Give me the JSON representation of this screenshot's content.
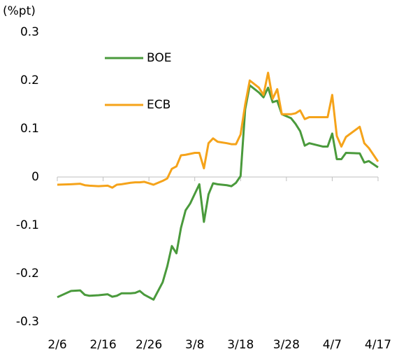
{
  "chart_data": {
    "type": "line",
    "ylabel": "(%pt)",
    "x": [
      0,
      3,
      5,
      6,
      7,
      9,
      11,
      12,
      13,
      14,
      16,
      17,
      18,
      19,
      20,
      21,
      23,
      24,
      25,
      26,
      27,
      28,
      29,
      30,
      31,
      32,
      33,
      34,
      35,
      37,
      38,
      39,
      40,
      41,
      42,
      44,
      45,
      46,
      47,
      48,
      49,
      51,
      52,
      53,
      54,
      55,
      58,
      59,
      60,
      61,
      62,
      63,
      66,
      67,
      68,
      70
    ],
    "series": [
      {
        "name": "BOE",
        "color": "#4a9a3c",
        "values": [
          -0.249,
          -0.236,
          -0.235,
          -0.244,
          -0.246,
          -0.245,
          -0.243,
          -0.248,
          -0.246,
          -0.241,
          -0.241,
          -0.24,
          -0.236,
          -0.244,
          -0.249,
          -0.254,
          -0.218,
          -0.185,
          -0.143,
          -0.158,
          -0.105,
          -0.069,
          -0.055,
          -0.035,
          -0.015,
          -0.093,
          -0.036,
          -0.013,
          -0.015,
          -0.017,
          -0.019,
          -0.012,
          0.002,
          0.14,
          0.19,
          0.175,
          0.165,
          0.185,
          0.155,
          0.158,
          0.13,
          0.122,
          0.11,
          0.095,
          0.065,
          0.07,
          0.063,
          0.063,
          0.09,
          0.037,
          0.037,
          0.05,
          0.049,
          0.03,
          0.033,
          0.02
        ]
      },
      {
        "name": "ECB",
        "color": "#f5a31a",
        "values": [
          -0.016,
          -0.015,
          -0.014,
          -0.017,
          -0.018,
          -0.019,
          -0.018,
          -0.022,
          -0.016,
          -0.015,
          -0.012,
          -0.011,
          -0.011,
          -0.01,
          -0.013,
          -0.016,
          -0.008,
          -0.003,
          0.017,
          0.022,
          0.045,
          0.046,
          0.048,
          0.05,
          0.05,
          0.018,
          0.07,
          0.08,
          0.073,
          0.07,
          0.068,
          0.068,
          0.088,
          0.15,
          0.2,
          0.185,
          0.17,
          0.216,
          0.162,
          0.182,
          0.13,
          0.13,
          0.132,
          0.138,
          0.12,
          0.124,
          0.124,
          0.124,
          0.17,
          0.085,
          0.063,
          0.083,
          0.104,
          0.07,
          0.06,
          0.032
        ]
      }
    ],
    "xlim": [
      0,
      70
    ],
    "xticks": [
      {
        "value": 0,
        "label": "2/6"
      },
      {
        "value": 10,
        "label": "2/16"
      },
      {
        "value": 20,
        "label": "2/26"
      },
      {
        "value": 30,
        "label": "3/8"
      },
      {
        "value": 40,
        "label": "3/18"
      },
      {
        "value": 50,
        "label": "3/28"
      },
      {
        "value": 60,
        "label": "4/7"
      },
      {
        "value": 70,
        "label": "4/17"
      }
    ],
    "ylim": [
      -0.3,
      0.3
    ],
    "yticks": [
      0.3,
      0.2,
      0.1,
      0,
      -0.1,
      -0.2,
      -0.3
    ],
    "grid": false,
    "legend": "upper left"
  }
}
